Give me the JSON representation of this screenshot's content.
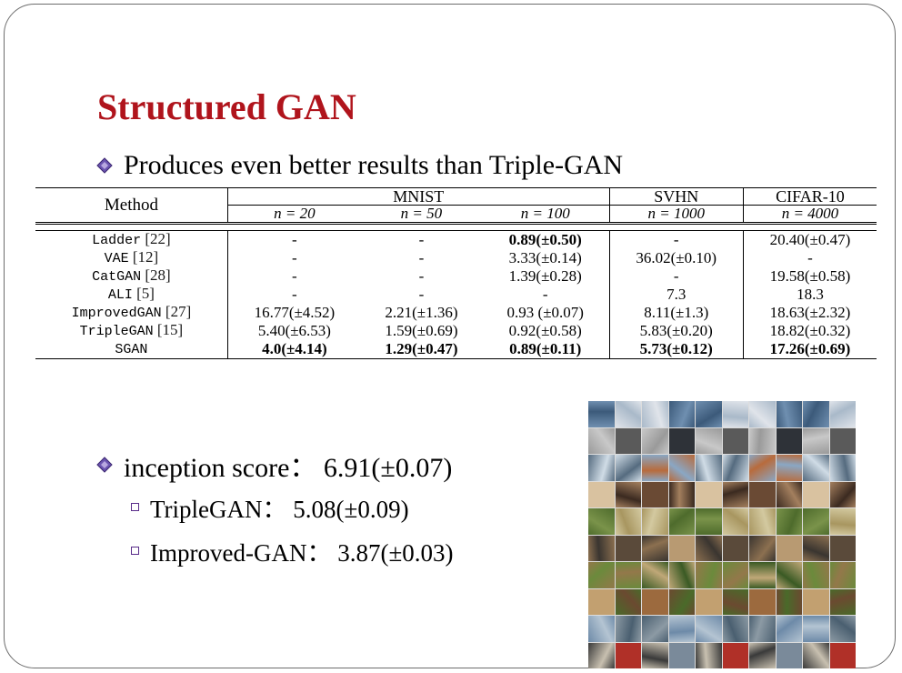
{
  "slide": {
    "title": "Structured GAN",
    "bullet1": "Produces even better results than Triple-GAN",
    "bullet2": "inception score： 6.91(±0.07)",
    "sub1": "TripleGAN： 5.08(±0.09)",
    "sub2": "Improved-GAN： 3.87(±0.03)"
  },
  "table": {
    "method_header": "Method",
    "groups": [
      "MNIST",
      "SVHN",
      "CIFAR-10"
    ],
    "subheaders": [
      "n = 20",
      "n = 50",
      "n = 100",
      "n = 1000",
      "n = 4000"
    ],
    "rows": [
      {
        "name": "Ladder",
        "ref": "[22]",
        "cells": [
          "-",
          "-",
          "0.89(±0.50)",
          "-",
          "20.40(±0.47)"
        ]
      },
      {
        "name": "VAE",
        "ref": "[12]",
        "cells": [
          "-",
          "-",
          "3.33(±0.14)",
          "36.02(±0.10)",
          "-"
        ]
      },
      {
        "name": "CatGAN",
        "ref": "[28]",
        "cells": [
          "-",
          "-",
          "1.39(±0.28)",
          "-",
          "19.58(±0.58)"
        ]
      },
      {
        "name": "ALI",
        "ref": "[5]",
        "cells": [
          "-",
          "-",
          "-",
          "7.3",
          "18.3"
        ]
      },
      {
        "name": "ImprovedGAN",
        "ref": "[27]",
        "cells": [
          "16.77(±4.52)",
          "2.21(±1.36)",
          "0.93 (±0.07)",
          "8.11(±1.3)",
          "18.63(±2.32)"
        ]
      },
      {
        "name": "TripleGAN",
        "ref": "[15]",
        "cells": [
          "5.40(±6.53)",
          "1.59(±0.69)",
          "0.92(±0.58)",
          "5.83(±0.20)",
          "18.82(±0.32)"
        ]
      },
      {
        "name": "SGAN",
        "ref": "",
        "cells": [
          "4.0(±4.14)",
          "1.29(±0.47)",
          "0.89(±0.11)",
          "5.73(±0.12)",
          "17.26(±0.69)"
        ]
      }
    ]
  },
  "colors": {
    "title": "#b0141c",
    "bullet_diamond": "#4b2a84"
  },
  "icons": [
    "diamond-bullet-icon",
    "square-bullet-icon"
  ]
}
